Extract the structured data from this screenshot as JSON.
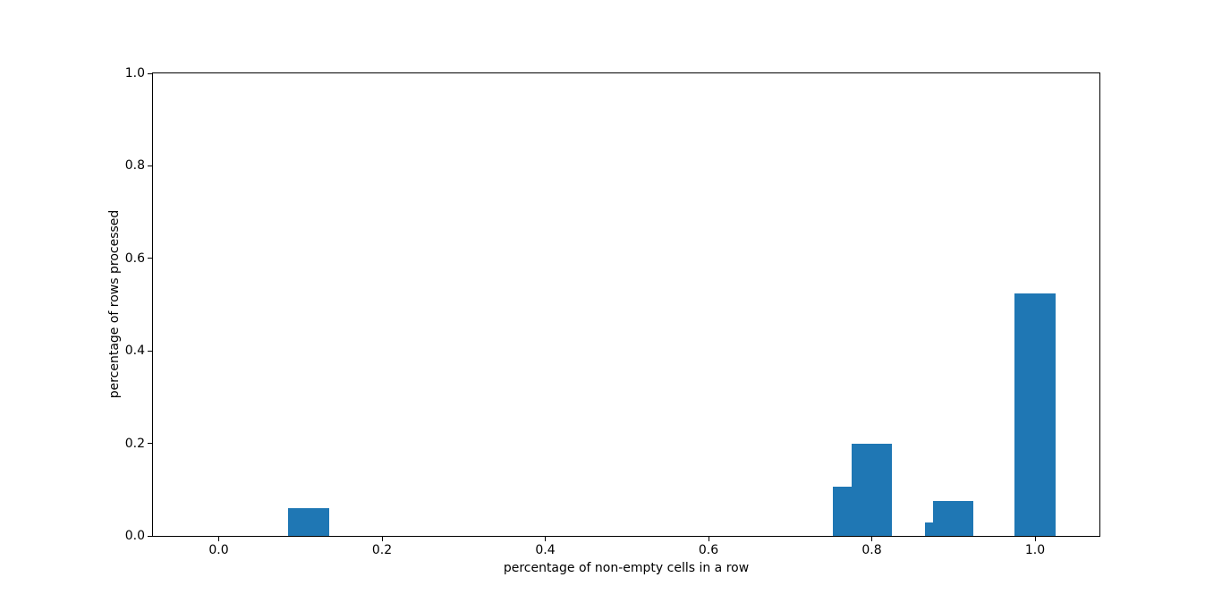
{
  "figure": {
    "background_color": "#ffffff",
    "bar_color": "#1f77b4",
    "spine_color": "#000000",
    "text_color": "#000000"
  },
  "chart_data": {
    "type": "bar",
    "title": "",
    "xlabel": "percentage of non-empty cells in a row",
    "ylabel": "percentage of rows processed",
    "xlim": [
      -0.0805,
      1.0789
    ],
    "ylim": [
      0,
      1.0
    ],
    "grid": false,
    "legend": null,
    "x_tick_labels": [
      "0.0",
      "0.2",
      "0.4",
      "0.6",
      "0.8",
      "1.0"
    ],
    "x_tick_values": [
      0.0,
      0.2,
      0.4,
      0.6,
      0.8,
      1.0
    ],
    "y_tick_labels": [
      "0.0",
      "0.2",
      "0.4",
      "0.6",
      "0.8",
      "1.0"
    ],
    "y_tick_values": [
      0.0,
      0.2,
      0.4,
      0.6,
      0.8,
      1.0
    ],
    "bar_width": 0.05,
    "bars": [
      {
        "x": 0.11,
        "height": 0.06
      },
      {
        "x": 0.777,
        "height": 0.107
      },
      {
        "x": 0.8,
        "height": 0.2
      },
      {
        "x": 0.89,
        "height": 0.03
      },
      {
        "x": 0.9,
        "height": 0.076
      },
      {
        "x": 1.0,
        "height": 0.524
      }
    ]
  }
}
